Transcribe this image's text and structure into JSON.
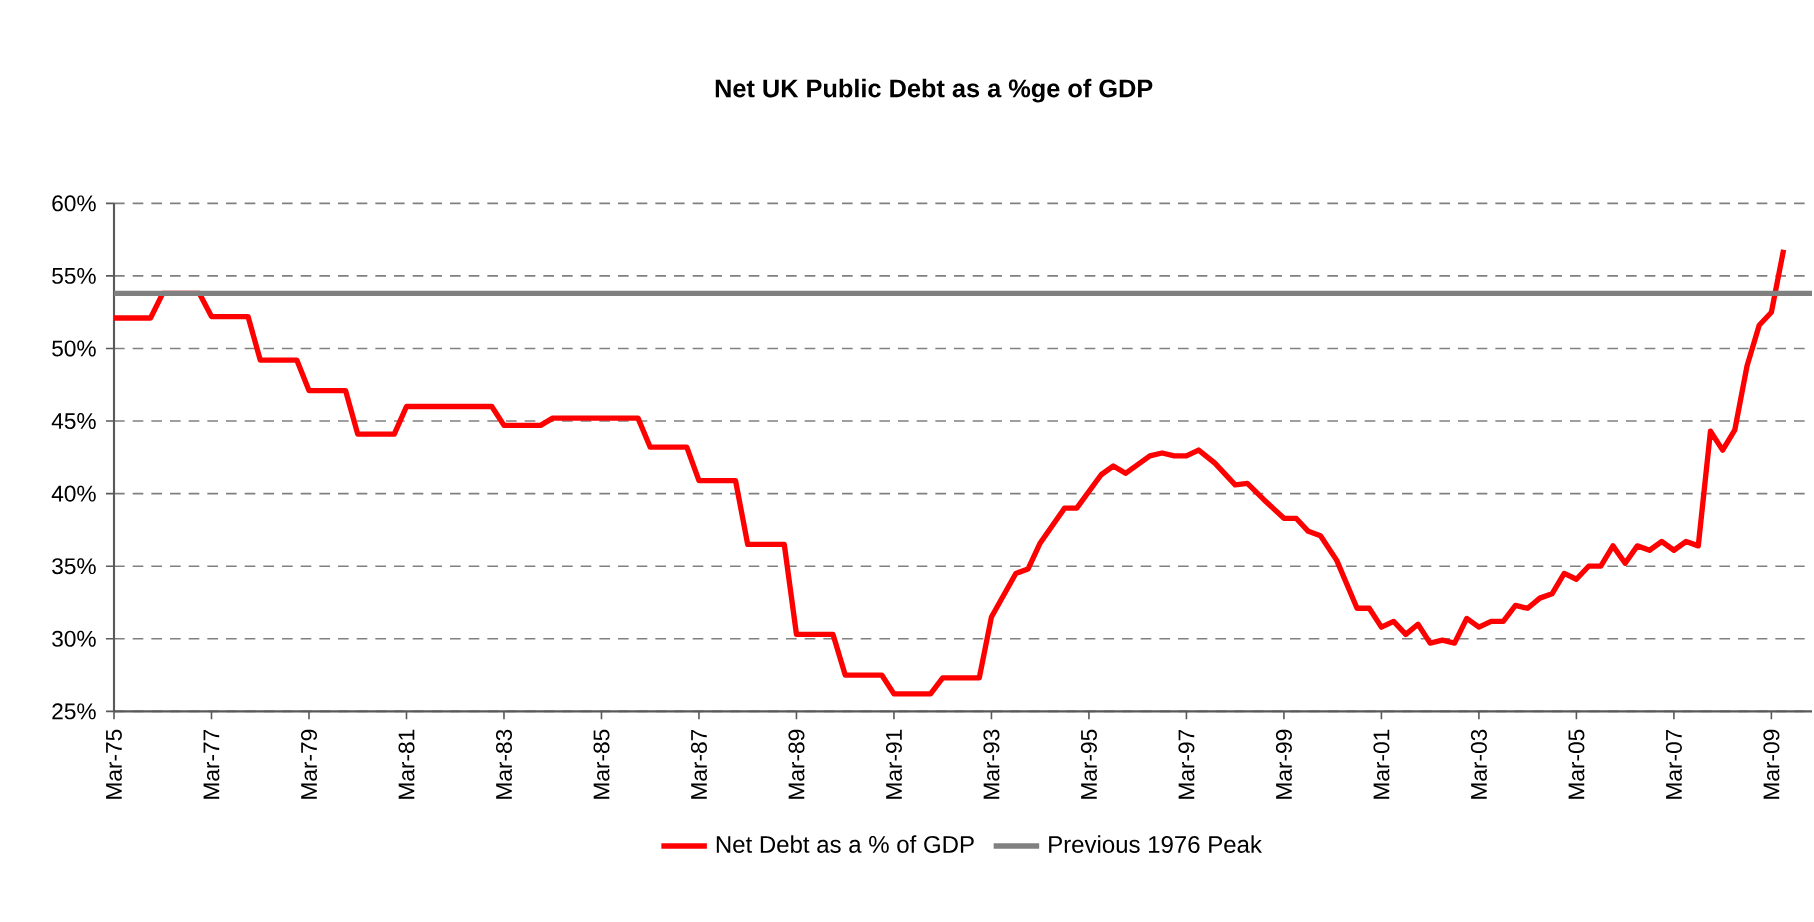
{
  "chart_data": {
    "type": "line",
    "title": "Net UK Public Debt as a %ge of GDP",
    "x": [
      "1975-03",
      "1975-12",
      "1976-03",
      "1976-12",
      "1977-03",
      "1977-12",
      "1978-03",
      "1978-12",
      "1979-03",
      "1979-12",
      "1980-03",
      "1980-12",
      "1981-03",
      "1982-12",
      "1983-03",
      "1983-12",
      "1984-03",
      "1985-12",
      "1986-03",
      "1986-12",
      "1987-03",
      "1987-12",
      "1988-03",
      "1988-12",
      "1989-03",
      "1989-12",
      "1990-03",
      "1990-12",
      "1991-03",
      "1991-12",
      "1992-03",
      "1992-12",
      "1993-03",
      "1993-09",
      "1993-12",
      "1994-03",
      "1994-09",
      "1994-12",
      "1995-06",
      "1995-09",
      "1995-12",
      "1996-03",
      "1996-06",
      "1996-09",
      "1996-12",
      "1997-03",
      "1997-06",
      "1997-10",
      "1998-03",
      "1998-06",
      "1998-10",
      "1999-03",
      "1999-06",
      "1999-09",
      "1999-12",
      "2000-04",
      "2000-09",
      "2000-12",
      "2001-03",
      "2001-06",
      "2001-09",
      "2001-12",
      "2002-03",
      "2002-06",
      "2002-09",
      "2002-12",
      "2003-03",
      "2003-06",
      "2003-09",
      "2003-12",
      "2004-03",
      "2004-06",
      "2004-09",
      "2004-12",
      "2005-03",
      "2005-06",
      "2005-09",
      "2005-12",
      "2006-03",
      "2006-06",
      "2006-09",
      "2006-12",
      "2007-03",
      "2007-06",
      "2007-09",
      "2007-12",
      "2008-03",
      "2008-06",
      "2008-09",
      "2008-12",
      "2009-03",
      "2009-06"
    ],
    "series": [
      {
        "name": "Net Debt as a % of GDP",
        "color": "#ff0000",
        "values": [
          52.1,
          52.1,
          53.8,
          53.8,
          52.2,
          52.2,
          49.2,
          49.2,
          47.1,
          47.1,
          44.1,
          44.1,
          46.0,
          46.0,
          44.7,
          44.7,
          45.2,
          45.2,
          43.2,
          43.2,
          40.9,
          40.9,
          36.5,
          36.5,
          30.3,
          30.3,
          27.5,
          27.5,
          26.2,
          26.2,
          27.3,
          27.3,
          31.5,
          34.5,
          34.8,
          36.6,
          39.0,
          39.0,
          41.3,
          41.9,
          41.4,
          42.0,
          42.6,
          42.8,
          42.6,
          42.6,
          43.0,
          42.1,
          40.6,
          40.7,
          39.6,
          38.3,
          38.3,
          37.4,
          37.1,
          35.4,
          32.1,
          32.1,
          30.8,
          31.2,
          30.3,
          31.0,
          29.7,
          29.9,
          29.7,
          31.4,
          30.8,
          31.2,
          31.2,
          32.3,
          32.1,
          32.8,
          33.1,
          34.5,
          34.1,
          35.0,
          35.0,
          36.4,
          35.2,
          36.4,
          36.1,
          36.7,
          36.1,
          36.7,
          36.4,
          44.3,
          43.0,
          44.4,
          48.8,
          51.6,
          52.5,
          56.8
        ]
      }
    ],
    "ref_lines": [
      {
        "axis": "y",
        "value": 53.8,
        "label": "Previous 1976 Peak",
        "color": "#808080"
      }
    ],
    "xlim": [
      "1975-03",
      "2010-01"
    ],
    "xticks": [
      {
        "value": "1975-03",
        "label": "Mar-75"
      },
      {
        "value": "1977-03",
        "label": "Mar-77"
      },
      {
        "value": "1979-03",
        "label": "Mar-79"
      },
      {
        "value": "1981-03",
        "label": "Mar-81"
      },
      {
        "value": "1983-03",
        "label": "Mar-83"
      },
      {
        "value": "1985-03",
        "label": "Mar-85"
      },
      {
        "value": "1987-03",
        "label": "Mar-87"
      },
      {
        "value": "1989-03",
        "label": "Mar-89"
      },
      {
        "value": "1991-03",
        "label": "Mar-91"
      },
      {
        "value": "1993-03",
        "label": "Mar-93"
      },
      {
        "value": "1995-03",
        "label": "Mar-95"
      },
      {
        "value": "1997-03",
        "label": "Mar-97"
      },
      {
        "value": "1999-03",
        "label": "Mar-99"
      },
      {
        "value": "2001-03",
        "label": "Mar-01"
      },
      {
        "value": "2003-03",
        "label": "Mar-03"
      },
      {
        "value": "2005-03",
        "label": "Mar-05"
      },
      {
        "value": "2007-03",
        "label": "Mar-07"
      },
      {
        "value": "2009-03",
        "label": "Mar-09"
      }
    ],
    "ylim": [
      25,
      60
    ],
    "yticks": [
      {
        "value": 25,
        "label": "25%"
      },
      {
        "value": 30,
        "label": "30%"
      },
      {
        "value": 35,
        "label": "35%"
      },
      {
        "value": 40,
        "label": "40%"
      },
      {
        "value": 45,
        "label": "45%"
      },
      {
        "value": 50,
        "label": "50%"
      },
      {
        "value": 55,
        "label": "55%"
      },
      {
        "value": 60,
        "label": "60%"
      }
    ],
    "grid": "y",
    "legend": "bottom",
    "line_style": "solid",
    "marker": "none"
  }
}
